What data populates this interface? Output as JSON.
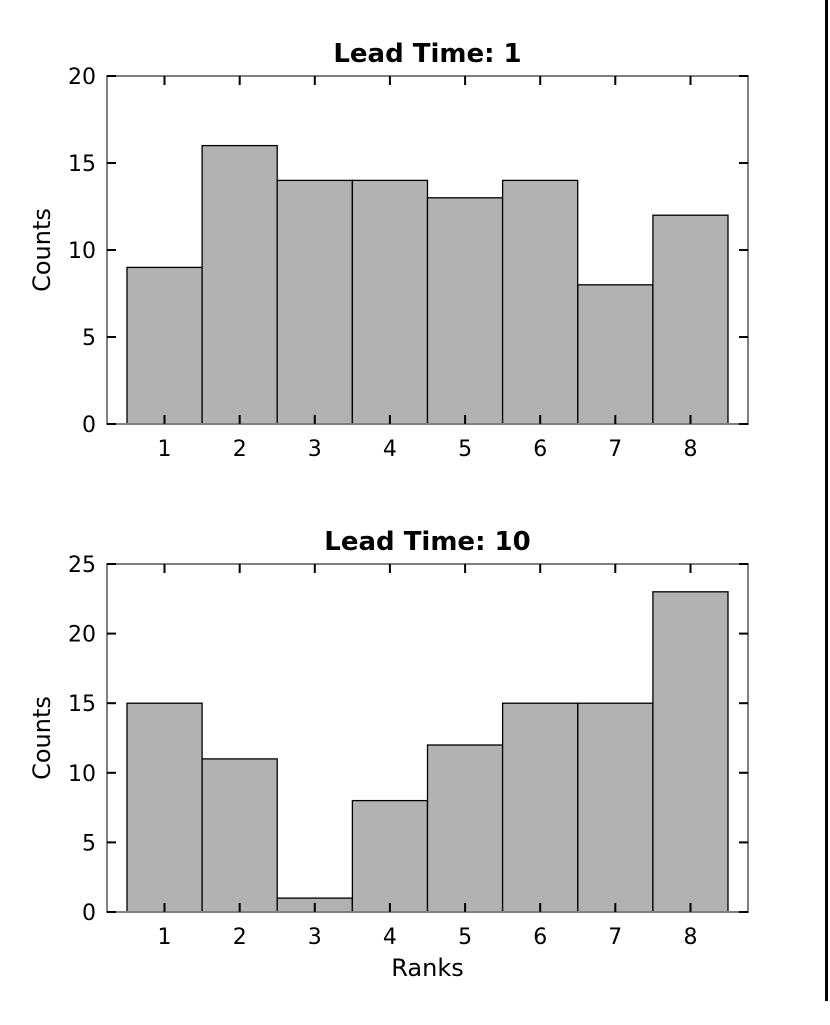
{
  "page": {
    "background": "#ffffff",
    "right_edge_line_color": "#000000"
  },
  "chart_data": [
    {
      "type": "bar",
      "title": "Lead Time: 1",
      "categories": [
        1,
        2,
        3,
        4,
        5,
        6,
        7,
        8
      ],
      "values": [
        9,
        16,
        14,
        14,
        13,
        14,
        8,
        12
      ],
      "xlabel": "",
      "ylabel": "Counts",
      "xlim": [
        0.234,
        8.766
      ],
      "ylim": [
        0,
        20
      ],
      "xticks": [
        1,
        2,
        3,
        4,
        5,
        6,
        7,
        8
      ],
      "yticks": [
        0,
        5,
        10,
        15,
        20
      ],
      "bar_width": 1.0,
      "grid": false,
      "legend": null,
      "bar_fill": "#b2b2b2",
      "bar_edge": "#000000",
      "axis_color": "#808080",
      "tick_color": "#000000"
    },
    {
      "type": "bar",
      "title": "Lead Time: 10",
      "categories": [
        1,
        2,
        3,
        4,
        5,
        6,
        7,
        8
      ],
      "values": [
        15,
        11,
        1,
        8,
        12,
        15,
        15,
        23
      ],
      "xlabel": "Ranks",
      "ylabel": "Counts",
      "xlim": [
        0.234,
        8.766
      ],
      "ylim": [
        0,
        25
      ],
      "xticks": [
        1,
        2,
        3,
        4,
        5,
        6,
        7,
        8
      ],
      "yticks": [
        0,
        5,
        10,
        15,
        20,
        25
      ],
      "bar_width": 1.0,
      "grid": false,
      "legend": null,
      "bar_fill": "#b2b2b2",
      "bar_edge": "#000000",
      "axis_color": "#808080",
      "tick_color": "#000000"
    }
  ]
}
